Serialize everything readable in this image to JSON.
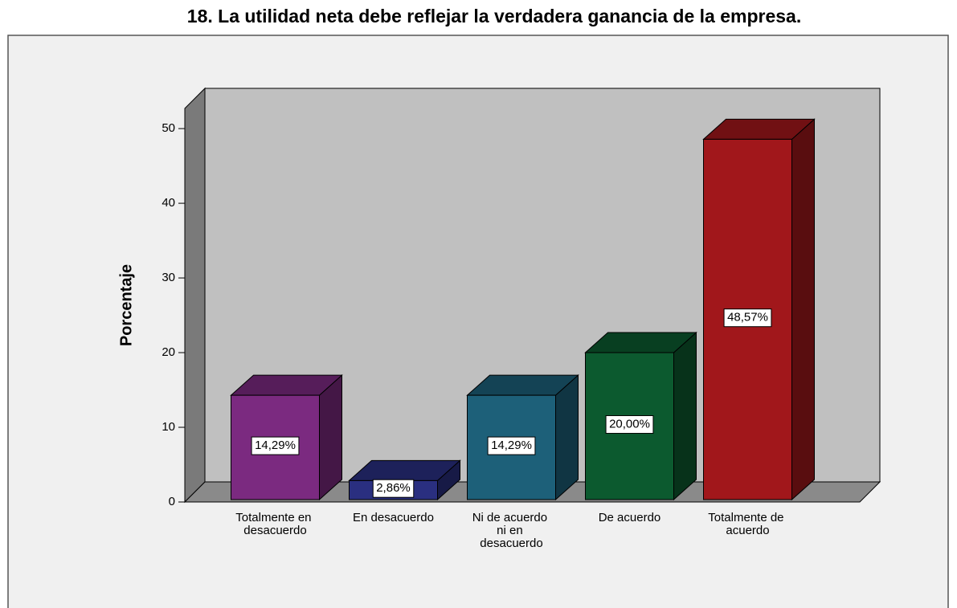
{
  "chart_data": {
    "type": "bar3d",
    "title": "18. La utilidad neta debe reflejar la verdadera ganancia de la empresa.",
    "y_label": "Porcentaje",
    "categories": [
      "Totalmente en desacuerdo",
      "En desacuerdo",
      "Ni de acuerdo ni en desacuerdo",
      "De acuerdo",
      "Totalmente de acuerdo"
    ],
    "values": [
      14.29,
      2.86,
      14.29,
      20.0,
      48.57
    ],
    "value_labels": [
      "14,29%",
      "2,86%",
      "14,29%",
      "20,00%",
      "48,57%"
    ],
    "colors": [
      "#7b2a80",
      "#2a2f80",
      "#1d6079",
      "#0c5a2f",
      "#a1171b"
    ],
    "ylim": [
      0,
      52.7
    ],
    "yticks": [
      0,
      10,
      20,
      30,
      40,
      50
    ]
  }
}
